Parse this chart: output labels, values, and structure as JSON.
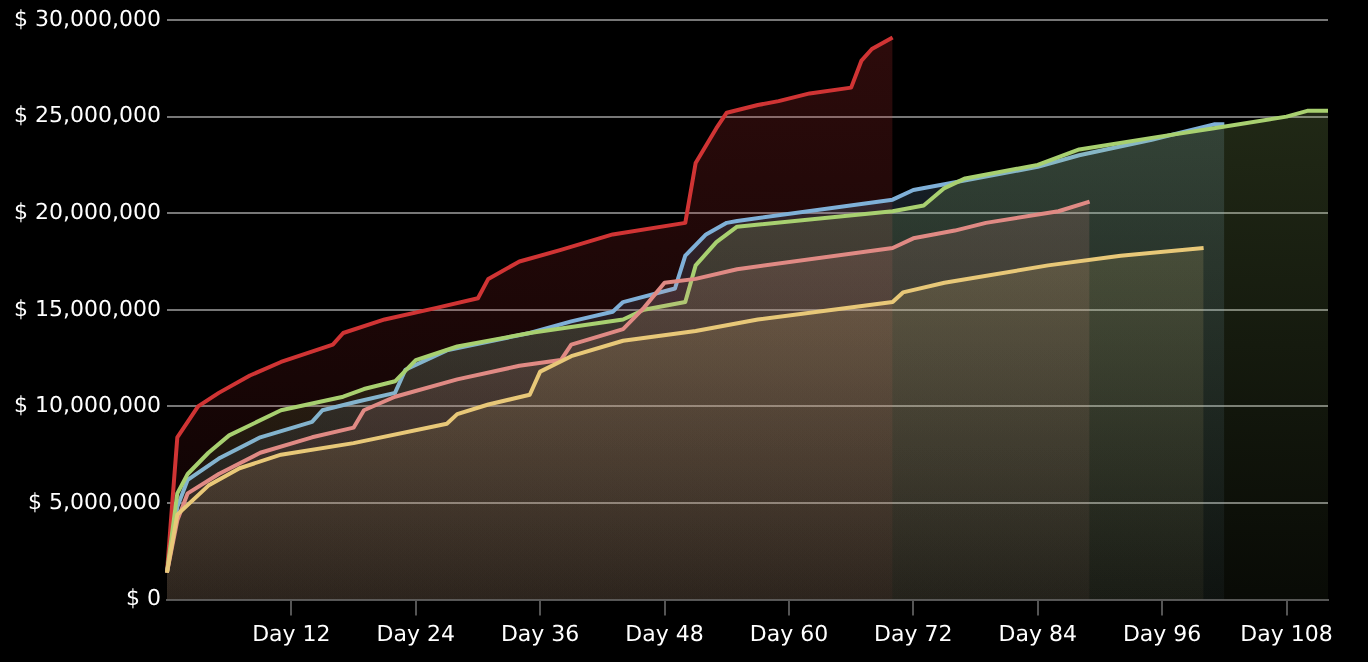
{
  "chart_data": {
    "type": "area",
    "ylim": [
      0,
      30000000
    ],
    "categories": [
      null,
      null,
      null,
      null,
      null,
      null,
      null,
      null,
      null,
      null,
      null,
      null,
      "Day 12",
      null,
      null,
      null,
      null,
      null,
      null,
      null,
      null,
      null,
      null,
      null,
      "Day 24",
      null,
      null,
      null,
      null,
      null,
      null,
      null,
      null,
      null,
      null,
      null,
      "Day 36",
      null,
      null,
      null,
      null,
      null,
      null,
      null,
      null,
      null,
      null,
      null,
      "Day 48",
      null,
      null,
      null,
      null,
      null,
      null,
      null,
      null,
      null,
      null,
      null,
      "Day 60",
      null,
      null,
      null,
      null,
      null,
      null,
      null,
      null,
      null,
      null,
      null,
      "Day 72",
      null,
      null,
      null,
      null,
      null,
      null,
      null,
      null,
      null,
      null,
      null,
      "Day 84",
      null,
      null,
      null,
      null,
      null,
      null,
      null,
      null,
      null,
      null,
      null,
      "Day 96",
      null,
      null,
      null,
      null,
      null,
      null,
      null,
      null,
      null,
      null,
      null,
      "Day 108",
      null,
      null,
      null,
      null
    ],
    "yticks": [
      {
        "value": 0,
        "label": "$ 0"
      },
      {
        "value": 5000000,
        "label": "$ 5,000,000"
      },
      {
        "value": 10000000,
        "label": "$ 10,000,000"
      },
      {
        "value": 15000000,
        "label": "$ 15,000,000"
      },
      {
        "value": 20000000,
        "label": "$ 20,000,000"
      },
      {
        "value": 25000000,
        "label": "$ 25,000,000"
      },
      {
        "value": 30000000,
        "label": "$ 30,000,000"
      }
    ],
    "grid": "y",
    "legend": false,
    "marker": "none",
    "series": [
      {
        "color": "#d03434",
        "values": [
          1400000,
          8400000,
          null,
          10000000,
          null,
          10700000,
          null,
          null,
          11600000,
          null,
          null,
          12300000,
          null,
          null,
          null,
          null,
          13200000,
          13800000,
          null,
          null,
          null,
          14500000,
          null,
          null,
          null,
          null,
          15100000,
          null,
          null,
          null,
          15600000,
          16600000,
          null,
          null,
          17500000,
          null,
          null,
          null,
          18100000,
          null,
          null,
          null,
          null,
          18900000,
          null,
          null,
          null,
          null,
          null,
          null,
          19500000,
          22600000,
          null,
          24400000,
          25200000,
          null,
          null,
          25600000,
          null,
          25800000,
          null,
          null,
          26200000,
          null,
          null,
          null,
          26500000,
          27900000,
          28500000,
          null,
          29100000,
          null,
          null,
          null,
          null,
          null,
          null,
          null,
          null,
          null,
          null,
          null,
          null,
          null,
          null,
          null,
          null,
          null,
          null,
          null,
          null,
          null,
          null,
          null,
          null,
          null,
          null,
          null,
          null,
          null,
          null,
          null,
          null,
          null,
          null,
          null,
          null,
          null,
          null,
          null,
          null,
          null,
          null
        ]
      },
      {
        "color": "#7fb0d8",
        "values": [
          1400000,
          4800000,
          6200000,
          null,
          null,
          7300000,
          null,
          null,
          null,
          8400000,
          null,
          null,
          null,
          null,
          9200000,
          9800000,
          null,
          null,
          10200000,
          null,
          null,
          null,
          10700000,
          11900000,
          null,
          null,
          null,
          12900000,
          null,
          null,
          null,
          null,
          null,
          null,
          null,
          13800000,
          null,
          null,
          null,
          14400000,
          null,
          null,
          null,
          14900000,
          15400000,
          null,
          null,
          null,
          null,
          16100000,
          17800000,
          null,
          18900000,
          null,
          19500000,
          19600000,
          null,
          null,
          null,
          null,
          null,
          null,
          null,
          null,
          null,
          null,
          null,
          null,
          null,
          null,
          20700000,
          null,
          21200000,
          null,
          null,
          21500000,
          null,
          null,
          null,
          null,
          null,
          null,
          null,
          null,
          22400000,
          null,
          null,
          null,
          23000000,
          null,
          null,
          null,
          null,
          null,
          null,
          23800000,
          null,
          null,
          null,
          null,
          null,
          24600000,
          24600000,
          null,
          null,
          null,
          null,
          null,
          null,
          null,
          null,
          null,
          null
        ]
      },
      {
        "color": "#a8d070",
        "values": [
          1400000,
          5500000,
          6500000,
          null,
          7600000,
          null,
          8500000,
          null,
          null,
          null,
          null,
          9800000,
          null,
          null,
          null,
          null,
          null,
          10500000,
          null,
          10900000,
          null,
          null,
          11300000,
          null,
          12400000,
          null,
          null,
          null,
          13100000,
          null,
          null,
          null,
          null,
          null,
          null,
          13800000,
          null,
          null,
          null,
          null,
          null,
          null,
          null,
          null,
          14500000,
          null,
          15000000,
          null,
          null,
          null,
          15400000,
          17300000,
          null,
          18500000,
          null,
          19300000,
          null,
          null,
          null,
          null,
          null,
          null,
          null,
          null,
          null,
          null,
          null,
          null,
          null,
          null,
          20100000,
          null,
          null,
          20400000,
          null,
          21300000,
          null,
          21800000,
          null,
          null,
          null,
          null,
          null,
          null,
          22500000,
          null,
          null,
          null,
          23300000,
          null,
          null,
          null,
          null,
          null,
          null,
          23900000,
          null,
          null,
          null,
          null,
          null,
          24400000,
          null,
          null,
          null,
          null,
          null,
          null,
          25000000,
          null,
          25300000,
          null,
          25300000
        ]
      },
      {
        "color": "#e08a84",
        "values": [
          1400000,
          4100000,
          5500000,
          null,
          null,
          6500000,
          null,
          null,
          null,
          7600000,
          null,
          null,
          null,
          null,
          8400000,
          null,
          null,
          null,
          8900000,
          9800000,
          null,
          null,
          10500000,
          null,
          null,
          null,
          null,
          null,
          11400000,
          null,
          null,
          null,
          null,
          null,
          12100000,
          null,
          null,
          null,
          12400000,
          13200000,
          null,
          null,
          null,
          null,
          14000000,
          null,
          15100000,
          null,
          16400000,
          null,
          null,
          16600000,
          null,
          null,
          null,
          17100000,
          null,
          null,
          null,
          null,
          null,
          null,
          null,
          null,
          null,
          null,
          null,
          null,
          null,
          null,
          18200000,
          null,
          18700000,
          null,
          null,
          null,
          19100000,
          null,
          null,
          19500000,
          null,
          null,
          null,
          null,
          null,
          null,
          20100000,
          null,
          null,
          20600000,
          null,
          null,
          null,
          null,
          null,
          null,
          null,
          null,
          null,
          null,
          null,
          null,
          null,
          null,
          null,
          null,
          null,
          null,
          null,
          null,
          null,
          null,
          null
        ]
      },
      {
        "color": "#e8c878",
        "values": [
          1400000,
          4400000,
          null,
          null,
          5900000,
          null,
          null,
          6800000,
          null,
          null,
          null,
          7500000,
          null,
          null,
          null,
          null,
          null,
          null,
          8100000,
          null,
          null,
          null,
          null,
          null,
          null,
          null,
          null,
          9100000,
          9600000,
          null,
          null,
          10100000,
          null,
          null,
          null,
          10600000,
          11800000,
          null,
          null,
          12600000,
          null,
          null,
          null,
          null,
          13400000,
          null,
          null,
          null,
          null,
          null,
          null,
          13900000,
          null,
          null,
          null,
          null,
          null,
          14500000,
          null,
          null,
          null,
          null,
          null,
          null,
          null,
          null,
          null,
          null,
          null,
          null,
          15400000,
          15900000,
          null,
          null,
          null,
          16400000,
          null,
          null,
          null,
          null,
          null,
          null,
          null,
          null,
          null,
          17300000,
          null,
          null,
          null,
          null,
          null,
          null,
          17800000,
          null,
          null,
          null,
          null,
          null,
          null,
          null,
          18200000,
          null,
          null,
          null,
          null,
          null,
          null,
          null,
          null,
          null,
          null,
          null,
          null
        ]
      }
    ]
  }
}
